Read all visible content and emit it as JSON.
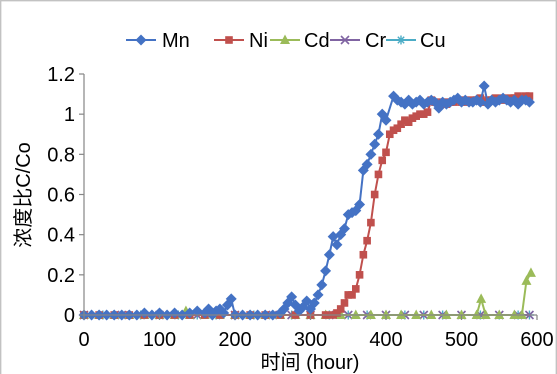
{
  "chart_data": {
    "type": "line",
    "title": "",
    "xlabel": "时间 (hour)",
    "ylabel": "浓度比C/Co",
    "xlim": [
      0,
      600
    ],
    "ylim": [
      0,
      1.2
    ],
    "x_ticks": [
      "0",
      "100",
      "200",
      "300",
      "400",
      "500",
      "600"
    ],
    "y_ticks": [
      "0",
      "0.2",
      "0.4",
      "0.6",
      "0.8",
      "1",
      "1.2"
    ],
    "grid": false,
    "legend_position": "top",
    "series": [
      {
        "name": "Mn",
        "color": "#4472c4",
        "marker": "diamond",
        "points": [
          [
            0,
            0.0
          ],
          [
            10,
            0.0
          ],
          [
            20,
            0.0
          ],
          [
            30,
            0.0
          ],
          [
            40,
            0.0
          ],
          [
            50,
            0.0
          ],
          [
            60,
            0.0
          ],
          [
            70,
            0.0
          ],
          [
            80,
            0.01
          ],
          [
            90,
            0.0
          ],
          [
            100,
            0.01
          ],
          [
            110,
            0.0
          ],
          [
            120,
            0.01
          ],
          [
            130,
            0.0
          ],
          [
            140,
            0.01
          ],
          [
            150,
            0.02
          ],
          [
            160,
            0.01
          ],
          [
            165,
            0.03
          ],
          [
            170,
            0.0
          ],
          [
            175,
            0.02
          ],
          [
            180,
            0.03
          ],
          [
            185,
            0.01
          ],
          [
            190,
            0.05
          ],
          [
            195,
            0.08
          ],
          [
            200,
            0.0
          ],
          [
            210,
            0.0
          ],
          [
            220,
            0.0
          ],
          [
            230,
            0.0
          ],
          [
            240,
            0.0
          ],
          [
            250,
            0.0
          ],
          [
            260,
            0.01
          ],
          [
            265,
            0.03
          ],
          [
            270,
            0.06
          ],
          [
            275,
            0.09
          ],
          [
            280,
            0.05
          ],
          [
            285,
            0.02
          ],
          [
            290,
            0.04
          ],
          [
            295,
            0.07
          ],
          [
            300,
            0.03
          ],
          [
            305,
            0.06
          ],
          [
            310,
            0.1
          ],
          [
            315,
            0.15
          ],
          [
            320,
            0.22
          ],
          [
            325,
            0.3
          ],
          [
            330,
            0.39
          ],
          [
            335,
            0.35
          ],
          [
            340,
            0.4
          ],
          [
            345,
            0.43
          ],
          [
            350,
            0.5
          ],
          [
            355,
            0.51
          ],
          [
            360,
            0.52
          ],
          [
            365,
            0.55
          ],
          [
            370,
            0.72
          ],
          [
            375,
            0.75
          ],
          [
            380,
            0.8
          ],
          [
            385,
            0.85
          ],
          [
            390,
            0.9
          ],
          [
            395,
            1.0
          ],
          [
            400,
            0.97
          ],
          [
            410,
            1.09
          ],
          [
            415,
            1.07
          ],
          [
            420,
            1.06
          ],
          [
            425,
            1.05
          ],
          [
            430,
            1.07
          ],
          [
            435,
            1.05
          ],
          [
            440,
            1.06
          ],
          [
            445,
            1.07
          ],
          [
            450,
            1.05
          ],
          [
            455,
            1.06
          ],
          [
            460,
            1.07
          ],
          [
            465,
            1.06
          ],
          [
            470,
            1.03
          ],
          [
            475,
            1.06
          ],
          [
            480,
            1.05
          ],
          [
            485,
            1.06
          ],
          [
            490,
            1.07
          ],
          [
            495,
            1.08
          ],
          [
            500,
            1.06
          ],
          [
            505,
            1.07
          ],
          [
            510,
            1.06
          ],
          [
            515,
            1.06
          ],
          [
            520,
            1.07
          ],
          [
            525,
            1.06
          ],
          [
            530,
            1.14
          ],
          [
            535,
            1.05
          ],
          [
            540,
            1.07
          ],
          [
            545,
            1.06
          ],
          [
            550,
            1.07
          ],
          [
            555,
            1.08
          ],
          [
            560,
            1.07
          ],
          [
            565,
            1.06
          ],
          [
            570,
            1.07
          ],
          [
            575,
            1.05
          ],
          [
            580,
            1.07
          ],
          [
            585,
            1.07
          ],
          [
            590,
            1.06
          ]
        ]
      },
      {
        "name": "Ni",
        "color": "#c0504d",
        "marker": "square",
        "points": [
          [
            0,
            0.0
          ],
          [
            20,
            0.0
          ],
          [
            40,
            0.0
          ],
          [
            60,
            0.0
          ],
          [
            80,
            0.0
          ],
          [
            100,
            0.0
          ],
          [
            120,
            0.0
          ],
          [
            140,
            0.0
          ],
          [
            160,
            0.0
          ],
          [
            180,
            0.0
          ],
          [
            200,
            0.0
          ],
          [
            220,
            0.0
          ],
          [
            240,
            0.0
          ],
          [
            260,
            0.0
          ],
          [
            280,
            0.0
          ],
          [
            300,
            0.0
          ],
          [
            320,
            0.0
          ],
          [
            330,
            0.0
          ],
          [
            335,
            0.01
          ],
          [
            340,
            0.03
          ],
          [
            345,
            0.06
          ],
          [
            350,
            0.1
          ],
          [
            355,
            0.1
          ],
          [
            360,
            0.13
          ],
          [
            365,
            0.2
          ],
          [
            370,
            0.3
          ],
          [
            375,
            0.37
          ],
          [
            380,
            0.46
          ],
          [
            385,
            0.6
          ],
          [
            390,
            0.7
          ],
          [
            395,
            0.77
          ],
          [
            400,
            0.81
          ],
          [
            405,
            0.9
          ],
          [
            410,
            0.92
          ],
          [
            415,
            0.93
          ],
          [
            420,
            0.95
          ],
          [
            425,
            0.97
          ],
          [
            430,
            0.96
          ],
          [
            435,
            0.98
          ],
          [
            440,
            0.99
          ],
          [
            445,
            1.0
          ],
          [
            450,
            1.0
          ],
          [
            455,
            1.01
          ],
          [
            460,
            1.07
          ],
          [
            465,
            1.06
          ],
          [
            470,
            1.05
          ],
          [
            475,
            1.06
          ],
          [
            480,
            1.05
          ],
          [
            485,
            1.06
          ],
          [
            490,
            1.06
          ],
          [
            495,
            1.07
          ],
          [
            500,
            1.06
          ],
          [
            505,
            1.07
          ],
          [
            510,
            1.06
          ],
          [
            515,
            1.07
          ],
          [
            520,
            1.07
          ],
          [
            525,
            1.08
          ],
          [
            530,
            1.06
          ],
          [
            535,
            1.07
          ],
          [
            540,
            1.07
          ],
          [
            545,
            1.08
          ],
          [
            550,
            1.07
          ],
          [
            555,
            1.08
          ],
          [
            560,
            1.07
          ],
          [
            565,
            1.08
          ],
          [
            570,
            1.08
          ],
          [
            575,
            1.09
          ],
          [
            580,
            1.08
          ],
          [
            585,
            1.09
          ],
          [
            590,
            1.09
          ]
        ]
      },
      {
        "name": "Cd",
        "color": "#9bbb59",
        "marker": "triangle",
        "points": [
          [
            0,
            0.0
          ],
          [
            20,
            0.0
          ],
          [
            40,
            0.0
          ],
          [
            60,
            0.0
          ],
          [
            80,
            0.0
          ],
          [
            100,
            0.0
          ],
          [
            120,
            0.0
          ],
          [
            135,
            0.02
          ],
          [
            140,
            0.0
          ],
          [
            160,
            0.0
          ],
          [
            180,
            0.0
          ],
          [
            200,
            0.0
          ],
          [
            220,
            0.0
          ],
          [
            240,
            0.0
          ],
          [
            260,
            0.0
          ],
          [
            280,
            0.0
          ],
          [
            300,
            0.0
          ],
          [
            320,
            0.0
          ],
          [
            340,
            0.0
          ],
          [
            360,
            0.0
          ],
          [
            380,
            0.0
          ],
          [
            400,
            0.0
          ],
          [
            420,
            0.0
          ],
          [
            440,
            0.0
          ],
          [
            460,
            0.0
          ],
          [
            480,
            0.0
          ],
          [
            500,
            0.0
          ],
          [
            520,
            0.0
          ],
          [
            526,
            0.08
          ],
          [
            532,
            0.0
          ],
          [
            550,
            0.0
          ],
          [
            570,
            0.0
          ],
          [
            580,
            0.0
          ],
          [
            586,
            0.17
          ],
          [
            592,
            0.21
          ]
        ]
      },
      {
        "name": "Cr",
        "color": "#8064a2",
        "marker": "x",
        "points": [
          [
            0,
            0.0
          ],
          [
            25,
            0.0
          ],
          [
            50,
            0.0
          ],
          [
            75,
            0.0
          ],
          [
            100,
            0.0
          ],
          [
            125,
            0.0
          ],
          [
            150,
            0.0
          ],
          [
            175,
            0.0
          ],
          [
            200,
            0.0
          ],
          [
            225,
            0.0
          ],
          [
            250,
            0.0
          ],
          [
            275,
            0.0
          ],
          [
            300,
            0.0
          ],
          [
            325,
            0.0
          ],
          [
            350,
            0.0
          ],
          [
            375,
            0.0
          ],
          [
            400,
            0.0
          ],
          [
            425,
            0.0
          ],
          [
            450,
            0.0
          ],
          [
            475,
            0.0
          ],
          [
            500,
            0.0
          ],
          [
            525,
            0.0
          ],
          [
            550,
            0.0
          ],
          [
            575,
            0.0
          ],
          [
            590,
            0.0
          ]
        ]
      },
      {
        "name": "Cu",
        "color": "#4bacc6",
        "marker": "star",
        "points": [
          [
            0,
            0.0
          ],
          [
            25,
            0.0
          ],
          [
            50,
            0.0
          ],
          [
            75,
            0.0
          ],
          [
            100,
            0.0
          ],
          [
            125,
            0.0
          ],
          [
            150,
            0.0
          ],
          [
            175,
            0.0
          ],
          [
            200,
            0.0
          ],
          [
            225,
            0.0
          ],
          [
            250,
            0.0
          ],
          [
            275,
            0.0
          ],
          [
            300,
            0.0
          ],
          [
            325,
            0.0
          ],
          [
            350,
            0.0
          ],
          [
            375,
            0.0
          ],
          [
            400,
            0.0
          ],
          [
            425,
            0.0
          ],
          [
            450,
            0.0
          ],
          [
            475,
            0.0
          ],
          [
            500,
            0.0
          ],
          [
            525,
            0.0
          ],
          [
            550,
            0.0
          ],
          [
            575,
            0.0
          ],
          [
            590,
            0.0
          ]
        ]
      }
    ]
  }
}
